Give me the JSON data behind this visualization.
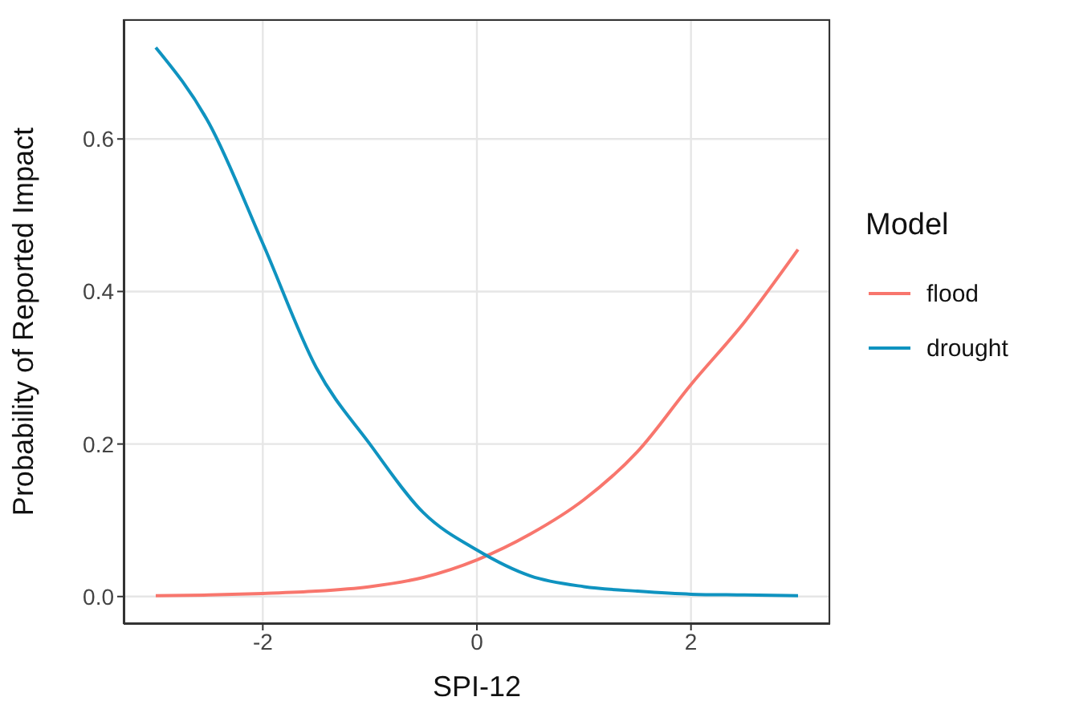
{
  "chart_data": {
    "type": "line",
    "xlabel": "SPI-12",
    "ylabel": "Probability of Reported Impact",
    "legend_title": "Model",
    "x": [
      -3,
      -2.5,
      -2,
      -1.5,
      -1,
      -0.5,
      0,
      0.5,
      1,
      1.5,
      2,
      2.5,
      3
    ],
    "series": [
      {
        "name": "flood",
        "color": "#f8766d",
        "values": [
          0.001,
          0.002,
          0.004,
          0.007,
          0.013,
          0.025,
          0.048,
          0.082,
          0.127,
          0.19,
          0.278,
          0.36,
          0.455
        ]
      },
      {
        "name": "drought",
        "color": "#0f93c0",
        "values": [
          0.72,
          0.62,
          0.463,
          0.3,
          0.2,
          0.11,
          0.061,
          0.027,
          0.013,
          0.007,
          0.003,
          0.002,
          0.001
        ]
      }
    ],
    "xlim": [
      -3.3,
      3.3
    ],
    "xticks": [
      -2,
      0,
      2
    ],
    "ylim": [
      -0.036,
      0.757
    ],
    "yticks": [
      {
        "value": 0,
        "label": "0.0"
      },
      0.2,
      0.4,
      0.6
    ],
    "grid": true,
    "legend": "right",
    "marker": "none",
    "line_style": "solid"
  }
}
